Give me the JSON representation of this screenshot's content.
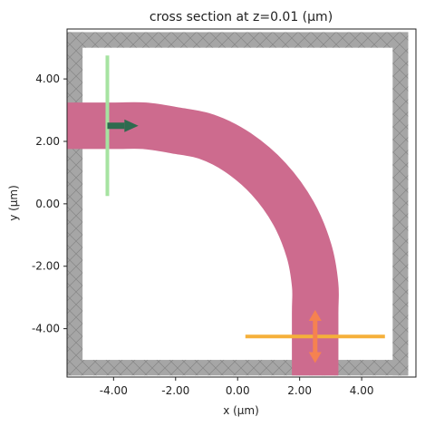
{
  "chart_data": {
    "type": "diagram-plot",
    "title": "cross section at z=0.01 (μm)",
    "xlabel": "x (μm)",
    "ylabel": "y (μm)",
    "xlim": [
      -5.5,
      5.75
    ],
    "ylim": [
      -5.55,
      5.6
    ],
    "xticks": [
      -4,
      -2,
      0,
      2,
      4
    ],
    "yticks": [
      -4,
      -2,
      0,
      2,
      4
    ],
    "xtick_labels": [
      "-4.00",
      "-2.00",
      "0.00",
      "2.00",
      "4.00"
    ],
    "ytick_labels": [
      "-4.00",
      "-2.00",
      "0.00",
      "2.00",
      "4.00"
    ],
    "grid": false,
    "simulation_domain": {
      "x": [
        -5.5,
        5.5
      ],
      "y": [
        -5.5,
        5.5
      ],
      "pml_thickness": 0.5
    },
    "waveguide": {
      "width": 1.5,
      "centerline": [
        [
          -5.5,
          2.5
        ],
        [
          -4.0,
          2.5
        ],
        [
          -3.0,
          2.5
        ],
        [
          -2.0,
          2.35
        ],
        [
          -1.0,
          2.15
        ],
        [
          0.0,
          1.65
        ],
        [
          1.0,
          0.8
        ],
        [
          1.8,
          -0.3
        ],
        [
          2.3,
          -1.5
        ],
        [
          2.5,
          -2.6
        ],
        [
          2.5,
          -3.5
        ],
        [
          2.5,
          -5.5
        ]
      ],
      "color": "#cd6b8e"
    },
    "source": {
      "x": -4.2,
      "y_range": [
        0.25,
        4.75
      ],
      "direction": "+x",
      "color": "#a6e3a1",
      "arrow_color": "#2e6b4f",
      "arrow_y": 2.5
    },
    "monitor": {
      "y": -4.25,
      "x_range": [
        0.25,
        4.75
      ],
      "color": "#f5b03a",
      "arrow_color": "#f58250",
      "arrow_x": 2.5
    }
  }
}
